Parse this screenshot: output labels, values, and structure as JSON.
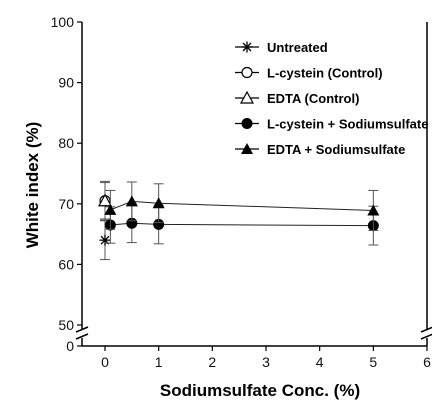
{
  "chart_data": {
    "type": "scatter",
    "xlabel": "Sodiumsulfate Conc. (%)",
    "ylabel": "White index (%)",
    "xlim": [
      0,
      6
    ],
    "ylim": [
      50,
      100
    ],
    "y_axis_break": true,
    "y_break_lower_value": 0,
    "x_ticks": [
      "0",
      "1",
      "2",
      "3",
      "4",
      "5",
      "6"
    ],
    "y_ticks_upper": [
      "50",
      "60",
      "70",
      "80",
      "90",
      "100"
    ],
    "y_tick_lower": "0",
    "legend_position": "top-right",
    "grid": false,
    "series": [
      {
        "name": "Untreated",
        "marker": "asterisk",
        "line": false,
        "points": [
          {
            "x": 0,
            "y": 64.0,
            "err": 3.2
          }
        ]
      },
      {
        "name": "L-cystein (Control)",
        "marker": "open-circle",
        "line": false,
        "points": [
          {
            "x": 0,
            "y": 70.5,
            "err": 3.2
          }
        ]
      },
      {
        "name": "EDTA (Control)",
        "marker": "open-triangle",
        "line": false,
        "points": [
          {
            "x": 0,
            "y": 70.5,
            "err": 3.0
          }
        ]
      },
      {
        "name": "L-cystein + Sodiumsulfate",
        "marker": "filled-circle",
        "line": true,
        "points": [
          {
            "x": 0.1,
            "y": 66.5,
            "err": 3.0
          },
          {
            "x": 0.5,
            "y": 66.8,
            "err": 3.2
          },
          {
            "x": 1.0,
            "y": 66.6,
            "err": 3.2
          },
          {
            "x": 5.0,
            "y": 66.4,
            "err": 3.2
          }
        ]
      },
      {
        "name": "EDTA + Sodiumsulfate",
        "marker": "filled-triangle",
        "line": true,
        "points": [
          {
            "x": 0.1,
            "y": 69.0,
            "err": 3.2
          },
          {
            "x": 0.5,
            "y": 70.4,
            "err": 3.2
          },
          {
            "x": 1.0,
            "y": 70.1,
            "err": 3.2
          },
          {
            "x": 5.0,
            "y": 68.9,
            "err": 3.3
          }
        ]
      }
    ]
  }
}
